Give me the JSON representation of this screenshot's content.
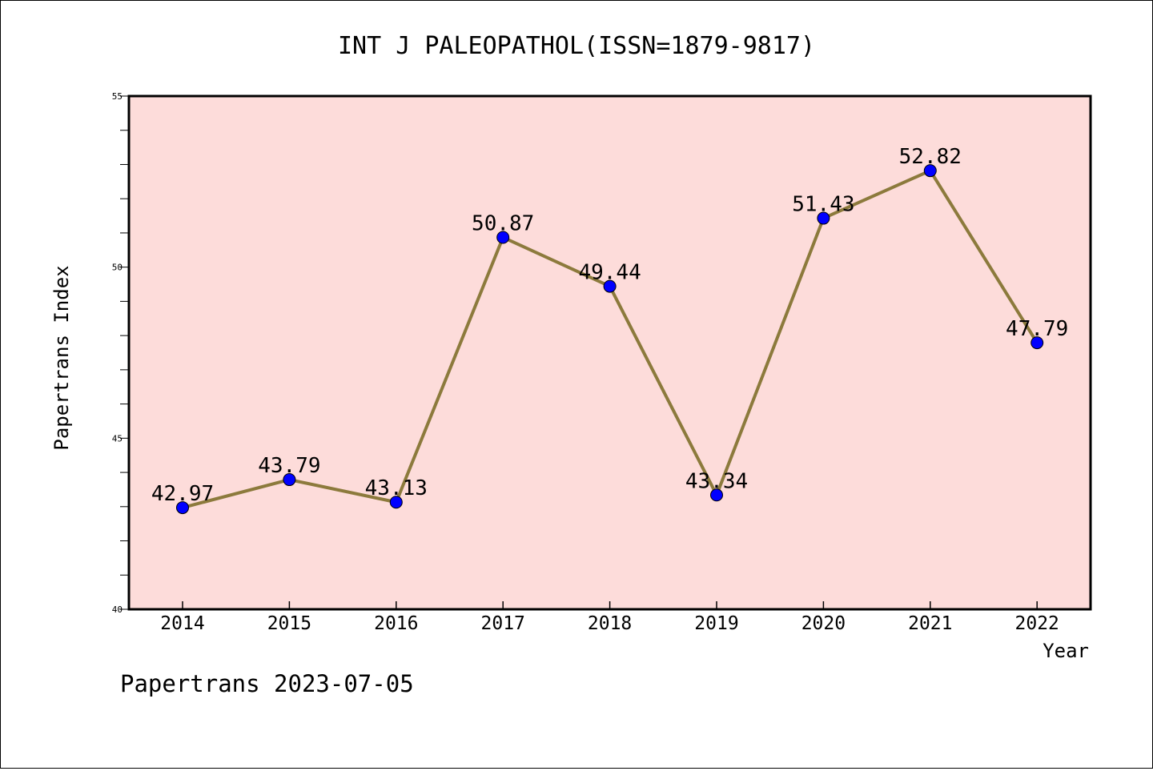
{
  "chart_data": {
    "type": "line",
    "title": "INT J PALEOPATHOL(ISSN=1879-9817)",
    "xlabel": "Year",
    "ylabel": "Papertrans Index",
    "x": [
      "2014",
      "2015",
      "2016",
      "2017",
      "2018",
      "2019",
      "2020",
      "2021",
      "2022"
    ],
    "series": [
      {
        "values": [
          42.97,
          43.79,
          43.13,
          50.87,
          49.44,
          43.34,
          51.43,
          52.82,
          47.79
        ],
        "labels": [
          "42.97",
          "43.79",
          "43.13",
          "50.87",
          "49.44",
          "43.34",
          "51.43",
          "52.82",
          "47.79"
        ]
      }
    ],
    "ylim": [
      40,
      55
    ],
    "yticks": [
      "40",
      "45",
      "50",
      "55"
    ],
    "grid": false,
    "colors": {
      "plot_background": "#FDDCDA",
      "line": "#8C7A3C",
      "marker": "#0000FF"
    }
  },
  "footer": "Papertrans 2023-07-05"
}
